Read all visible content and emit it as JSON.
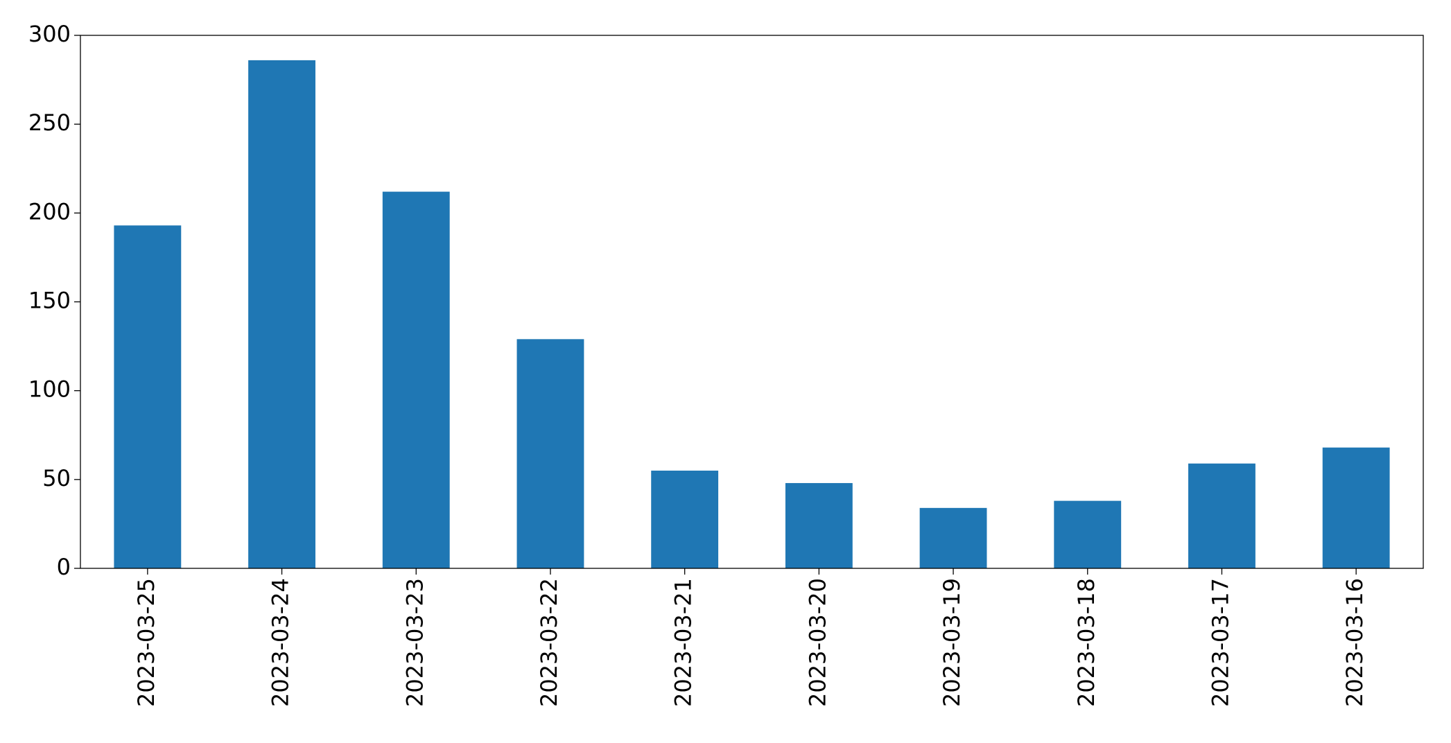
{
  "chart_data": {
    "type": "bar",
    "categories": [
      "2023-03-25",
      "2023-03-24",
      "2023-03-23",
      "2023-03-22",
      "2023-03-21",
      "2023-03-20",
      "2023-03-19",
      "2023-03-18",
      "2023-03-17",
      "2023-03-16"
    ],
    "values": [
      193,
      286,
      212,
      129,
      55,
      48,
      34,
      38,
      59,
      68
    ],
    "color": "#1f77b4",
    "ylim": [
      0,
      300
    ],
    "yticks": [
      0,
      50,
      100,
      150,
      200,
      250,
      300
    ],
    "grid": false
  }
}
